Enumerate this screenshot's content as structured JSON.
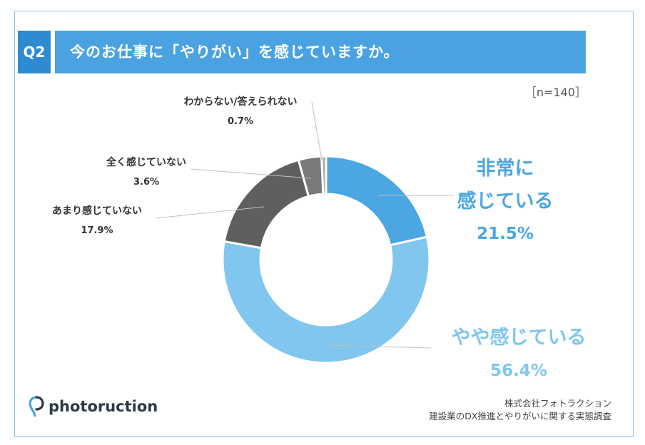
{
  "header": {
    "badge": "Q2",
    "question": "今のお仕事に「やりがい」を感じていますか。",
    "sample_size": "［n=140］"
  },
  "colors": {
    "header_blue": "#4aa3e0",
    "badge_blue": "#2f8bd0",
    "very": "#4ba6e2",
    "somewhat": "#80c6ee",
    "not_much": "#5f5f5f",
    "not_at_all": "#7a7a7a",
    "dont_know": "#a8a8a8",
    "leader": "#bfbfbf",
    "dark_label": "#333333"
  },
  "chart_data": {
    "type": "pie",
    "donut": true,
    "title": "今のお仕事に「やりがい」を感じていますか。",
    "n": 140,
    "slices": [
      {
        "label": "非常に感じている",
        "value": 21.5,
        "value_label": "21.5%"
      },
      {
        "label": "やや感じている",
        "value": 56.4,
        "value_label": "56.4%"
      },
      {
        "label": "あまり感じていない",
        "value": 17.9,
        "value_label": "17.9%"
      },
      {
        "label": "全く感じていない",
        "value": 3.6,
        "value_label": "3.6%"
      },
      {
        "label": "わからない/答えられない",
        "value": 0.7,
        "value_label": "0.7%"
      }
    ],
    "label_lines": {
      "very": [
        "非常に",
        "感じている"
      ],
      "somewhat": [
        "やや感じている"
      ]
    }
  },
  "footer": {
    "logo_text": "photoruction",
    "company": "株式会社フォトラクション",
    "survey_name": "建設業のDX推進とやりがいに関する実態調査"
  }
}
